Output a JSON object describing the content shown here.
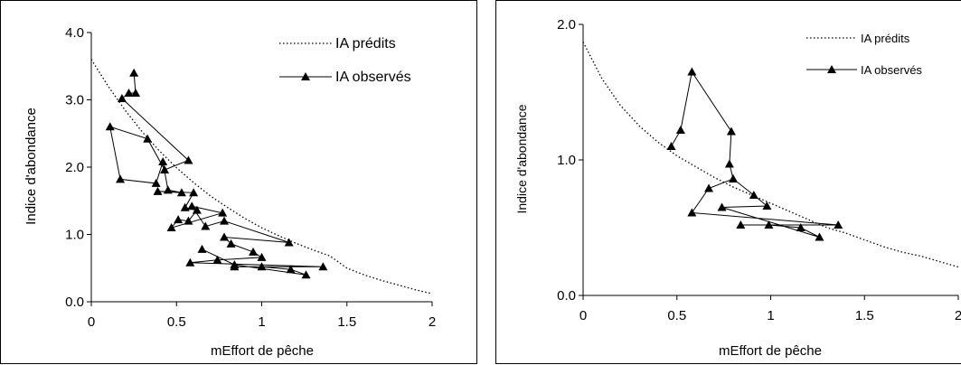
{
  "chart_data": [
    {
      "type": "line",
      "title": "",
      "xlabel": "mEffort de pêche",
      "ylabel": "Indice d'abondance",
      "xlim": [
        0,
        2
      ],
      "ylim": [
        0,
        4
      ],
      "xticks": [
        "0",
        "0.5",
        "1",
        "1.5",
        "2"
      ],
      "yticks": [
        "0.0",
        "1.0",
        "2.0",
        "3.0",
        "4.0"
      ],
      "legend_position": "top-right",
      "series": [
        {
          "name": "IA prédits",
          "style": "dotted",
          "x": [
            0,
            0.1,
            0.2,
            0.3,
            0.4,
            0.5,
            0.6,
            0.7,
            0.8,
            0.9,
            1.0,
            1.1,
            1.2,
            1.3,
            1.4,
            1.5,
            1.6,
            1.7,
            1.8,
            1.9,
            2.0
          ],
          "y": [
            3.6,
            3.2,
            2.84,
            2.52,
            2.24,
            1.99,
            1.77,
            1.57,
            1.4,
            1.24,
            1.1,
            0.98,
            0.87,
            0.77,
            0.68,
            0.5,
            0.4,
            0.32,
            0.25,
            0.18,
            0.12
          ]
        },
        {
          "name": "IA observés",
          "style": "solid-triangle",
          "x": [
            0.25,
            0.26,
            0.22,
            0.18,
            0.57,
            0.43,
            0.33,
            0.11,
            0.17,
            0.38,
            0.42,
            0.45,
            0.53,
            0.39,
            0.6,
            0.55,
            0.62,
            0.57,
            0.51,
            0.47,
            0.77,
            0.59,
            0.67,
            0.78,
            1.16,
            0.78,
            0.82,
            0.95,
            1.0,
            0.74,
            0.58,
            1.36,
            0.84,
            1.0,
            1.17,
            1.26,
            0.84,
            0.65
          ],
          "y": [
            3.4,
            3.1,
            3.1,
            3.02,
            2.1,
            1.96,
            2.42,
            2.6,
            1.82,
            1.76,
            2.08,
            1.66,
            1.62,
            1.64,
            1.62,
            1.4,
            1.36,
            1.2,
            1.22,
            1.1,
            1.32,
            1.42,
            1.12,
            1.2,
            0.88,
            0.96,
            0.86,
            0.74,
            0.66,
            0.62,
            0.58,
            0.52,
            0.52,
            0.52,
            0.48,
            0.4,
            0.55,
            0.78
          ]
        }
      ]
    },
    {
      "type": "line",
      "title": "",
      "xlabel": "mEffort de pêche",
      "ylabel": "Indice d'abondance",
      "xlim": [
        0,
        2
      ],
      "ylim": [
        0,
        2
      ],
      "xticks": [
        "0",
        "0.5",
        "1",
        "1.5",
        "2"
      ],
      "yticks": [
        "0.0",
        "1.0",
        "2.0"
      ],
      "legend_position": "top-right",
      "series": [
        {
          "name": "IA prédits",
          "style": "dotted",
          "x": [
            0,
            0.1,
            0.2,
            0.3,
            0.4,
            0.5,
            0.6,
            0.7,
            0.8,
            0.9,
            1.0,
            1.1,
            1.2,
            1.3,
            1.4,
            1.5,
            1.6,
            1.7,
            1.8,
            1.9,
            2.0
          ],
          "y": [
            1.87,
            1.6,
            1.4,
            1.25,
            1.13,
            1.03,
            0.95,
            0.87,
            0.8,
            0.74,
            0.68,
            0.62,
            0.56,
            0.5,
            0.46,
            0.41,
            0.36,
            0.32,
            0.29,
            0.25,
            0.21
          ]
        },
        {
          "name": "IA observés",
          "style": "solid-triangle",
          "x": [
            0.47,
            0.52,
            0.58,
            0.79,
            0.78,
            0.8,
            0.67,
            0.58,
            1.36,
            0.84,
            0.99,
            1.16,
            1.26,
            0.74,
            0.98,
            0.91,
            0.8
          ],
          "y": [
            1.1,
            1.22,
            1.65,
            1.21,
            0.97,
            0.86,
            0.79,
            0.61,
            0.52,
            0.52,
            0.52,
            0.5,
            0.43,
            0.65,
            0.66,
            0.74,
            0.86
          ]
        }
      ]
    }
  ]
}
